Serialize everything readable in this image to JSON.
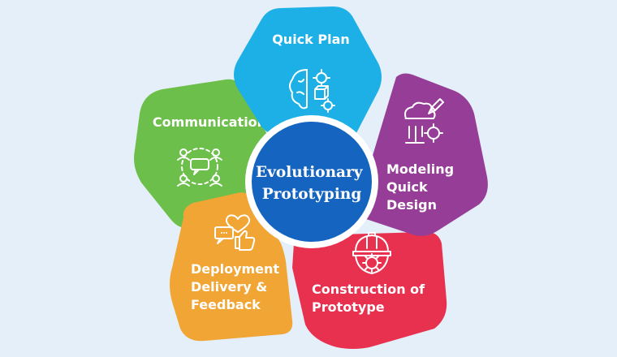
{
  "center": {
    "lines": [
      "Evolutionary",
      "Prototyping"
    ],
    "color": "#1565c0"
  },
  "stages": [
    {
      "id": "quick-plan",
      "lines": [
        "Quick Plan"
      ],
      "color": "#1cb0e6",
      "icon": "brain-gears-icon"
    },
    {
      "id": "modeling-quick-design",
      "lines": [
        "Modeling",
        "Quick",
        "Design"
      ],
      "color": "#963e97",
      "icon": "design-tools-icon"
    },
    {
      "id": "construction-of-prototype",
      "lines": [
        "Construction of",
        "Prototype"
      ],
      "color": "#e8304f",
      "icon": "hardhat-gear-icon"
    },
    {
      "id": "deployment-delivery-feedback",
      "lines": [
        "Deployment",
        "Delivery &",
        "Feedback"
      ],
      "color": "#f0a534",
      "icon": "feedback-thumbs-up-icon"
    },
    {
      "id": "communication",
      "lines": [
        "Communication"
      ],
      "color": "#6cbf4a",
      "icon": "team-chat-icon"
    }
  ]
}
